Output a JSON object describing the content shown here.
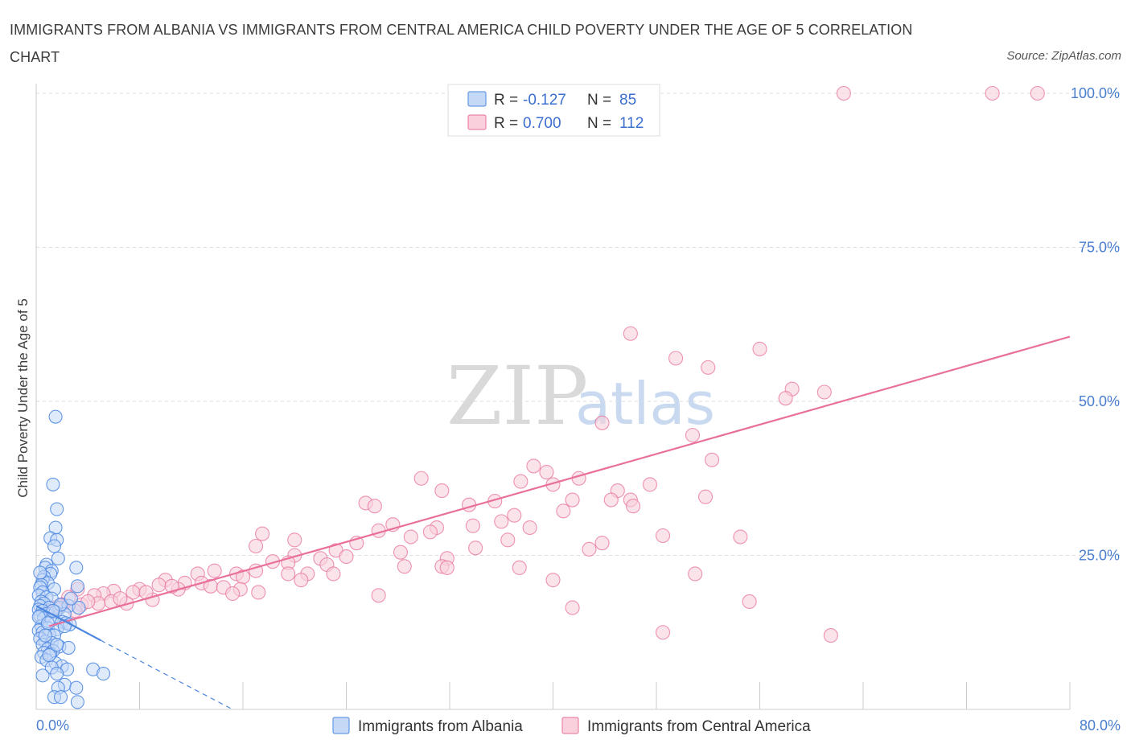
{
  "header": {
    "title": "IMMIGRANTS FROM ALBANIA VS IMMIGRANTS FROM CENTRAL AMERICA CHILD POVERTY UNDER THE AGE OF 5 CORRELATION CHART",
    "source": "Source: ZipAtlas.com"
  },
  "watermark": {
    "zip": "ZIP",
    "atlas": "atlas"
  },
  "colors": {
    "albania": "#4a86e0",
    "albania_fill": "#c5d9f7",
    "central_america": "#e8709a",
    "central_america_fill": "#f9d0dc",
    "axis_tick_text": "#4a7fd0"
  },
  "legend": {
    "rows": [
      {
        "r_label": "R = ",
        "r_value": "-0.127",
        "n_label": "N = ",
        "n_value": "85"
      },
      {
        "r_label": "R = ",
        "r_value": "0.700",
        "n_label": "N = ",
        "n_value": "112"
      }
    ]
  },
  "bottom_legend": [
    "Immigrants from Albania",
    "Immigrants from Central America"
  ],
  "chart_data": {
    "type": "scatter",
    "title": "IMMIGRANTS FROM ALBANIA VS IMMIGRANTS FROM CENTRAL AMERICA CHILD POVERTY UNDER THE AGE OF 5 CORRELATION CHART",
    "xlabel": "",
    "ylabel": "Child Poverty Under the Age of 5",
    "xlim": [
      0,
      80
    ],
    "ylim": [
      0,
      100
    ],
    "x_tick_labels": [
      "0.0%",
      "80.0%"
    ],
    "y_tick_labels": [
      "25.0%",
      "50.0%",
      "75.0%",
      "100.0%"
    ],
    "y_ticks": [
      25,
      50,
      75,
      100
    ],
    "grid": true,
    "legend_position": "top-center",
    "series": [
      {
        "name": "Immigrants from Albania",
        "r": -0.127,
        "n": 85,
        "trend": {
          "x0": 0.0,
          "y0": 16.8,
          "x1": 5.0,
          "y1": 11.2,
          "dashed_to_x": 15.2,
          "dashed_to_y": 0.0
        },
        "points": [
          [
            1.5,
            47.5
          ],
          [
            1.3,
            36.5
          ],
          [
            1.6,
            32.5
          ],
          [
            1.5,
            29.5
          ],
          [
            1.1,
            27.8
          ],
          [
            1.6,
            27.5
          ],
          [
            1.4,
            26.5
          ],
          [
            1.7,
            24.5
          ],
          [
            0.8,
            23.5
          ],
          [
            0.7,
            23.0
          ],
          [
            1.2,
            22.5
          ],
          [
            1.1,
            22.0
          ],
          [
            0.6,
            21.5
          ],
          [
            0.5,
            21.0
          ],
          [
            0.9,
            20.5
          ],
          [
            0.4,
            20.2
          ],
          [
            0.3,
            19.8
          ],
          [
            1.4,
            19.5
          ],
          [
            3.1,
            23.0
          ],
          [
            3.2,
            20.0
          ],
          [
            0.5,
            19.0
          ],
          [
            0.2,
            18.5
          ],
          [
            0.8,
            18.2
          ],
          [
            1.2,
            18.0
          ],
          [
            0.4,
            17.5
          ],
          [
            0.6,
            17.2
          ],
          [
            0.3,
            16.8
          ],
          [
            1.0,
            16.5
          ],
          [
            1.8,
            16.5
          ],
          [
            2.5,
            16.8
          ],
          [
            3.3,
            16.5
          ],
          [
            0.2,
            16.2
          ],
          [
            0.5,
            16.0
          ],
          [
            0.8,
            15.5
          ],
          [
            1.5,
            15.8
          ],
          [
            2.2,
            15.5
          ],
          [
            0.3,
            15.2
          ],
          [
            0.6,
            14.8
          ],
          [
            1.2,
            14.5
          ],
          [
            2.0,
            14.2
          ],
          [
            2.3,
            14.0
          ],
          [
            2.6,
            13.8
          ],
          [
            0.4,
            13.5
          ],
          [
            0.9,
            13.2
          ],
          [
            1.6,
            13.0
          ],
          [
            2.2,
            13.5
          ],
          [
            0.2,
            12.8
          ],
          [
            0.5,
            12.5
          ],
          [
            1.0,
            12.2
          ],
          [
            1.4,
            12.0
          ],
          [
            0.3,
            11.5
          ],
          [
            0.7,
            11.0
          ],
          [
            1.2,
            10.8
          ],
          [
            0.5,
            10.5
          ],
          [
            1.8,
            10.2
          ],
          [
            2.5,
            10.0
          ],
          [
            0.9,
            9.8
          ],
          [
            1.3,
            9.5
          ],
          [
            0.6,
            9.2
          ],
          [
            1.1,
            9.0
          ],
          [
            0.4,
            8.5
          ],
          [
            0.8,
            8.0
          ],
          [
            1.5,
            7.5
          ],
          [
            2.0,
            7.0
          ],
          [
            1.2,
            6.8
          ],
          [
            2.4,
            6.5
          ],
          [
            4.4,
            6.5
          ],
          [
            5.2,
            5.8
          ],
          [
            0.5,
            5.5
          ],
          [
            1.6,
            5.8
          ],
          [
            2.2,
            4.0
          ],
          [
            3.1,
            3.5
          ],
          [
            1.7,
            3.5
          ],
          [
            1.4,
            2.0
          ],
          [
            1.9,
            2.0
          ],
          [
            3.2,
            1.2
          ],
          [
            0.2,
            15.0
          ],
          [
            0.9,
            14.0
          ],
          [
            1.9,
            17.0
          ],
          [
            2.7,
            18.0
          ],
          [
            0.7,
            12.0
          ],
          [
            1.0,
            8.8
          ],
          [
            1.6,
            10.5
          ],
          [
            0.3,
            22.2
          ],
          [
            1.3,
            16.0
          ]
        ]
      },
      {
        "name": "Immigrants from Central America",
        "r": 0.7,
        "n": 112,
        "trend": {
          "x0": 1.0,
          "y0": 13.5,
          "x1": 80.0,
          "y1": 60.5
        },
        "points": [
          [
            62.5,
            100.0
          ],
          [
            74.0,
            100.0
          ],
          [
            77.5,
            100.0
          ],
          [
            46.0,
            61.0
          ],
          [
            56.0,
            58.5
          ],
          [
            49.5,
            57.0
          ],
          [
            52.0,
            55.5
          ],
          [
            58.5,
            52.0
          ],
          [
            61.0,
            51.5
          ],
          [
            58.0,
            50.5
          ],
          [
            43.8,
            46.5
          ],
          [
            50.8,
            44.5
          ],
          [
            52.3,
            40.5
          ],
          [
            38.5,
            39.5
          ],
          [
            39.5,
            38.5
          ],
          [
            42.0,
            37.5
          ],
          [
            29.8,
            37.5
          ],
          [
            37.5,
            37.0
          ],
          [
            40.0,
            36.5
          ],
          [
            47.5,
            36.5
          ],
          [
            31.4,
            35.5
          ],
          [
            45.0,
            35.5
          ],
          [
            51.8,
            34.5
          ],
          [
            44.5,
            34.0
          ],
          [
            46.0,
            34.0
          ],
          [
            41.5,
            34.0
          ],
          [
            35.5,
            33.8
          ],
          [
            33.5,
            33.2
          ],
          [
            46.2,
            33.0
          ],
          [
            25.5,
            33.5
          ],
          [
            26.2,
            33.0
          ],
          [
            40.8,
            32.2
          ],
          [
            37.0,
            31.5
          ],
          [
            36.0,
            30.5
          ],
          [
            27.6,
            30.0
          ],
          [
            33.8,
            29.8
          ],
          [
            31.0,
            29.5
          ],
          [
            38.2,
            29.5
          ],
          [
            26.5,
            29.0
          ],
          [
            30.5,
            28.8
          ],
          [
            17.5,
            28.5
          ],
          [
            48.5,
            28.2
          ],
          [
            54.5,
            28.0
          ],
          [
            29.0,
            28.0
          ],
          [
            36.5,
            27.5
          ],
          [
            20.0,
            27.5
          ],
          [
            43.8,
            27.0
          ],
          [
            24.8,
            27.0
          ],
          [
            17.0,
            26.5
          ],
          [
            34.0,
            26.2
          ],
          [
            42.8,
            26.0
          ],
          [
            23.2,
            25.8
          ],
          [
            20.0,
            25.0
          ],
          [
            28.2,
            25.5
          ],
          [
            24.0,
            24.8
          ],
          [
            22.0,
            24.5
          ],
          [
            31.8,
            24.5
          ],
          [
            18.3,
            24.0
          ],
          [
            19.5,
            23.8
          ],
          [
            22.5,
            23.5
          ],
          [
            28.5,
            23.2
          ],
          [
            31.4,
            23.2
          ],
          [
            31.8,
            23.0
          ],
          [
            37.4,
            23.0
          ],
          [
            13.8,
            22.5
          ],
          [
            17.0,
            22.5
          ],
          [
            21.0,
            22.0
          ],
          [
            23.0,
            22.0
          ],
          [
            19.5,
            22.0
          ],
          [
            12.5,
            22.0
          ],
          [
            15.5,
            22.0
          ],
          [
            51.0,
            22.0
          ],
          [
            16.0,
            21.5
          ],
          [
            20.5,
            21.0
          ],
          [
            10.0,
            21.0
          ],
          [
            11.5,
            20.5
          ],
          [
            12.8,
            20.5
          ],
          [
            9.5,
            20.2
          ],
          [
            13.5,
            20.0
          ],
          [
            14.5,
            19.8
          ],
          [
            15.8,
            19.5
          ],
          [
            11.0,
            19.5
          ],
          [
            8.0,
            19.5
          ],
          [
            7.5,
            19.0
          ],
          [
            6.0,
            19.2
          ],
          [
            3.2,
            19.5
          ],
          [
            5.2,
            18.8
          ],
          [
            17.2,
            19.0
          ],
          [
            15.2,
            18.8
          ],
          [
            26.5,
            18.5
          ],
          [
            4.5,
            18.5
          ],
          [
            2.5,
            18.2
          ],
          [
            9.0,
            17.8
          ],
          [
            5.8,
            17.5
          ],
          [
            4.8,
            17.2
          ],
          [
            7.0,
            17.2
          ],
          [
            3.5,
            17.0
          ],
          [
            2.0,
            17.0
          ],
          [
            1.8,
            16.8
          ],
          [
            1.5,
            16.5
          ],
          [
            1.2,
            16.2
          ],
          [
            0.8,
            16.0
          ],
          [
            40.0,
            21.0
          ],
          [
            55.2,
            17.5
          ],
          [
            41.5,
            16.5
          ],
          [
            61.5,
            12.0
          ],
          [
            48.5,
            12.5
          ],
          [
            3.0,
            16.0
          ],
          [
            4.0,
            17.5
          ],
          [
            6.5,
            18.0
          ],
          [
            10.5,
            20.0
          ],
          [
            8.5,
            19.0
          ]
        ]
      }
    ]
  }
}
